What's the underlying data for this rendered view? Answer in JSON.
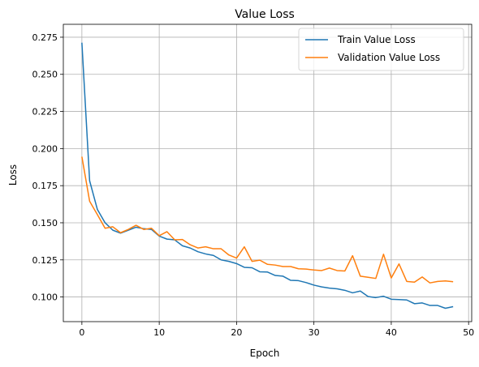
{
  "chart_data": {
    "type": "line",
    "title": "Value Loss",
    "xlabel": "Epoch",
    "ylabel": "Loss",
    "xlim": [
      -2.4,
      50.4
    ],
    "ylim": [
      0.0834,
      0.2837
    ],
    "xticks": [
      0,
      10,
      20,
      30,
      40,
      50
    ],
    "xtick_labels": [
      "0",
      "10",
      "20",
      "30",
      "40",
      "50"
    ],
    "yticks": [
      0.1,
      0.125,
      0.15,
      0.175,
      0.2,
      0.225,
      0.25,
      0.275
    ],
    "ytick_labels": [
      "0.100",
      "0.125",
      "0.150",
      "0.175",
      "0.200",
      "0.225",
      "0.250",
      "0.275"
    ],
    "grid": true,
    "legend_position": "top-right",
    "x": [
      0,
      1,
      2,
      3,
      4,
      5,
      6,
      7,
      8,
      9,
      10,
      11,
      12,
      13,
      14,
      15,
      16,
      17,
      18,
      19,
      20,
      21,
      22,
      23,
      24,
      25,
      26,
      27,
      28,
      29,
      30,
      31,
      32,
      33,
      34,
      35,
      36,
      37,
      38,
      39,
      40,
      41,
      42,
      43,
      44,
      45,
      46,
      47,
      48
    ],
    "series": [
      {
        "name": "Train Value Loss",
        "color": "#1f77b4",
        "values": [
          0.2713,
          0.1783,
          0.159,
          0.15,
          0.145,
          0.143,
          0.145,
          0.147,
          0.146,
          0.1455,
          0.141,
          0.139,
          0.1385,
          0.1345,
          0.133,
          0.1305,
          0.129,
          0.128,
          0.125,
          0.124,
          0.1225,
          0.12,
          0.1197,
          0.117,
          0.1168,
          0.1145,
          0.114,
          0.1112,
          0.111,
          0.1097,
          0.108,
          0.1068,
          0.106,
          0.1055,
          0.1045,
          0.1028,
          0.104,
          0.1003,
          0.0996,
          0.1005,
          0.0985,
          0.0983,
          0.098,
          0.0955,
          0.096,
          0.0943,
          0.0943,
          0.0924,
          0.0935
        ]
      },
      {
        "name": "Validation Value Loss",
        "color": "#ff7f0e",
        "values": [
          0.1945,
          0.1645,
          0.1555,
          0.1463,
          0.1473,
          0.1433,
          0.1455,
          0.1483,
          0.1455,
          0.1463,
          0.1413,
          0.144,
          0.1385,
          0.1387,
          0.1352,
          0.133,
          0.1338,
          0.1325,
          0.1325,
          0.1283,
          0.1262,
          0.1338,
          0.124,
          0.1248,
          0.122,
          0.1215,
          0.1205,
          0.1205,
          0.119,
          0.1188,
          0.1182,
          0.1178,
          0.1195,
          0.1178,
          0.1175,
          0.1278,
          0.114,
          0.1133,
          0.1125,
          0.1288,
          0.1128,
          0.1223,
          0.1105,
          0.11,
          0.1135,
          0.1095,
          0.1105,
          0.1108,
          0.1103
        ]
      }
    ]
  }
}
